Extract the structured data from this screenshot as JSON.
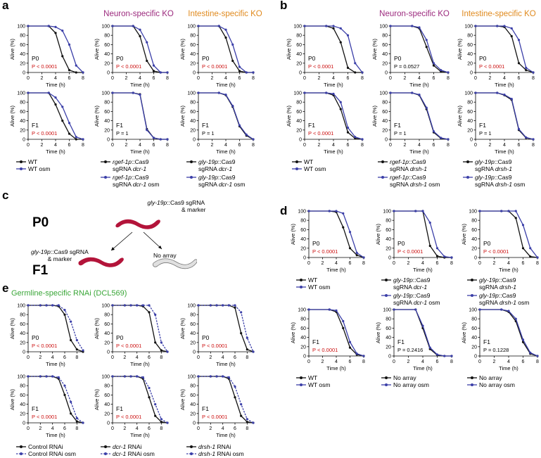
{
  "panel_letters": {
    "a": "a",
    "b": "b",
    "c": "c",
    "d": "d",
    "e": "e"
  },
  "column_titles": {
    "a_neuron": "Neuron-specific KO",
    "a_intestine": "Intestine-specific KO",
    "b_neuron": "Neuron-specific KO",
    "b_intestine": "Intestine-specific KO",
    "e_title": "Germline-specific RNAi (DCL569)"
  },
  "panel_c": {
    "p0": "P0",
    "f1": "F1",
    "top_label_line1_italic": "gly-19p",
    "top_label_line1_rest": "::Cas9 sgRNA",
    "top_label_line2": "& marker",
    "left_label_line1_italic": "gly-19p",
    "left_label_line1_rest": "::Cas9 sgRNA",
    "left_label_line2": "& marker",
    "right_label": "No array"
  },
  "axis_common": {
    "ylabel": "Alive (%)",
    "xlabel": "Time (h)",
    "yticks": [
      "0",
      "20",
      "40",
      "60",
      "80",
      "100"
    ],
    "xticks": [
      "0",
      "2",
      "4",
      "6",
      "8"
    ]
  },
  "colors": {
    "wt": "#111111",
    "osm": "#3b3fa8",
    "pval": "#cc1111"
  },
  "chart_data": [
    {
      "id": "a1",
      "type": "line",
      "gen": "P0",
      "p": "P < 0.0001",
      "sig": true,
      "dashed": false,
      "x": [
        0,
        3,
        4,
        5,
        6,
        7,
        8
      ],
      "series": [
        {
          "values": [
            100,
            100,
            85,
            35,
            5,
            0,
            0
          ]
        },
        {
          "values": [
            100,
            100,
            98,
            90,
            60,
            15,
            0
          ]
        }
      ]
    },
    {
      "id": "a2",
      "type": "line",
      "gen": "P0",
      "p": "P < 0.0001",
      "sig": true,
      "dashed": false,
      "x": [
        0,
        3,
        4,
        5,
        6,
        7,
        8
      ],
      "series": [
        {
          "values": [
            100,
            100,
            78,
            25,
            3,
            0,
            0
          ]
        },
        {
          "values": [
            100,
            100,
            92,
            65,
            15,
            0,
            0
          ]
        }
      ]
    },
    {
      "id": "a3",
      "type": "line",
      "gen": "P0",
      "p": "P < 0.0001",
      "sig": true,
      "dashed": false,
      "x": [
        0,
        3,
        4,
        5,
        6,
        7,
        8
      ],
      "series": [
        {
          "values": [
            100,
            100,
            75,
            25,
            3,
            0,
            0
          ]
        },
        {
          "values": [
            100,
            100,
            92,
            60,
            12,
            0,
            0
          ]
        }
      ]
    },
    {
      "id": "a4",
      "type": "line",
      "gen": "F1",
      "p": "P < 0.0001",
      "sig": true,
      "dashed": false,
      "x": [
        0,
        3,
        4,
        5,
        6,
        7,
        8
      ],
      "series": [
        {
          "values": [
            100,
            100,
            75,
            40,
            12,
            0,
            0
          ]
        },
        {
          "values": [
            100,
            100,
            90,
            70,
            35,
            5,
            0
          ]
        }
      ]
    },
    {
      "id": "a5",
      "type": "line",
      "gen": "F1",
      "p": "P = 1",
      "sig": false,
      "dashed": false,
      "x": [
        0,
        3,
        4,
        5,
        6,
        7,
        8
      ],
      "series": [
        {
          "values": [
            100,
            100,
            97,
            22,
            3,
            0,
            0
          ]
        },
        {
          "values": [
            100,
            100,
            96,
            20,
            3,
            0,
            0
          ]
        }
      ]
    },
    {
      "id": "a6",
      "type": "line",
      "gen": "F1",
      "p": "P = 1",
      "sig": false,
      "dashed": false,
      "x": [
        0,
        3,
        4,
        5,
        6,
        7,
        8
      ],
      "series": [
        {
          "values": [
            100,
            100,
            95,
            70,
            28,
            8,
            0
          ]
        },
        {
          "values": [
            100,
            100,
            96,
            72,
            30,
            10,
            0
          ]
        }
      ]
    },
    {
      "id": "b1",
      "type": "line",
      "gen": "P0",
      "p": "P < 0.0001",
      "sig": true,
      "dashed": false,
      "x": [
        0,
        3,
        4,
        5,
        6,
        7,
        8
      ],
      "series": [
        {
          "values": [
            100,
            100,
            95,
            65,
            10,
            0,
            0
          ]
        },
        {
          "values": [
            100,
            100,
            100,
            95,
            80,
            20,
            0
          ]
        }
      ]
    },
    {
      "id": "b2",
      "type": "line",
      "gen": "P0",
      "p": "P = 0.0527",
      "sig": false,
      "dashed": false,
      "x": [
        0,
        3,
        4,
        5,
        6,
        7,
        8
      ],
      "series": [
        {
          "values": [
            100,
            100,
            95,
            55,
            15,
            2,
            0
          ]
        },
        {
          "values": [
            100,
            100,
            97,
            70,
            20,
            5,
            0
          ]
        }
      ]
    },
    {
      "id": "b3",
      "type": "line",
      "gen": "P0",
      "p": "P < 0.0001",
      "sig": true,
      "dashed": false,
      "x": [
        0,
        3,
        4,
        5,
        6,
        7,
        8
      ],
      "series": [
        {
          "values": [
            100,
            100,
            98,
            78,
            20,
            5,
            0
          ]
        },
        {
          "values": [
            100,
            100,
            100,
            95,
            70,
            10,
            0
          ]
        }
      ]
    },
    {
      "id": "b4",
      "type": "line",
      "gen": "F1",
      "p": "P < 0.0001",
      "sig": true,
      "dashed": false,
      "x": [
        0,
        3,
        4,
        5,
        6,
        7,
        8
      ],
      "series": [
        {
          "values": [
            100,
            100,
            95,
            65,
            15,
            2,
            0
          ]
        },
        {
          "values": [
            100,
            100,
            98,
            80,
            25,
            5,
            0
          ]
        }
      ]
    },
    {
      "id": "b5",
      "type": "line",
      "gen": "F1",
      "p": "P = 1",
      "sig": false,
      "dashed": false,
      "x": [
        0,
        3,
        4,
        5,
        6,
        7,
        8
      ],
      "series": [
        {
          "values": [
            100,
            100,
            95,
            65,
            15,
            2,
            0
          ]
        },
        {
          "values": [
            100,
            100,
            96,
            68,
            17,
            3,
            0
          ]
        }
      ]
    },
    {
      "id": "b6",
      "type": "line",
      "gen": "F1",
      "p": "P = 1",
      "sig": false,
      "dashed": false,
      "x": [
        0,
        3,
        4,
        5,
        6,
        7,
        8
      ],
      "series": [
        {
          "values": [
            100,
            100,
            95,
            85,
            20,
            3,
            0
          ]
        },
        {
          "values": [
            100,
            100,
            96,
            87,
            22,
            4,
            0
          ]
        }
      ]
    },
    {
      "id": "d1",
      "type": "line",
      "gen": "P0",
      "p": "P < 0.0001",
      "sig": true,
      "dashed": false,
      "x": [
        0,
        3,
        4,
        5,
        6,
        7,
        8
      ],
      "series": [
        {
          "values": [
            100,
            100,
            98,
            65,
            20,
            5,
            0
          ]
        },
        {
          "values": [
            100,
            100,
            100,
            95,
            55,
            10,
            0
          ]
        }
      ]
    },
    {
      "id": "d2",
      "type": "line",
      "gen": "P0",
      "p": "P < 0.0001",
      "sig": true,
      "dashed": false,
      "x": [
        0,
        3,
        4,
        5,
        6,
        7,
        8
      ],
      "series": [
        {
          "values": [
            100,
            100,
            100,
            25,
            3,
            0,
            0
          ]
        },
        {
          "values": [
            100,
            100,
            100,
            75,
            20,
            2,
            0
          ]
        }
      ]
    },
    {
      "id": "d3",
      "type": "line",
      "gen": "P0",
      "p": "P < 0.0001",
      "sig": true,
      "dashed": false,
      "x": [
        0,
        3,
        4,
        5,
        6,
        7,
        8
      ],
      "series": [
        {
          "values": [
            100,
            100,
            100,
            85,
            20,
            2,
            0
          ]
        },
        {
          "values": [
            100,
            100,
            100,
            100,
            70,
            20,
            0
          ]
        }
      ]
    },
    {
      "id": "d4",
      "type": "line",
      "gen": "F1",
      "p": "P < 0.0001",
      "sig": true,
      "dashed": false,
      "x": [
        0,
        3,
        4,
        5,
        6,
        7,
        8
      ],
      "series": [
        {
          "values": [
            100,
            100,
            95,
            60,
            18,
            3,
            0
          ]
        },
        {
          "values": [
            100,
            100,
            98,
            75,
            30,
            5,
            0
          ]
        }
      ]
    },
    {
      "id": "d5",
      "type": "line",
      "gen": "F1",
      "p": "P = 0.2416",
      "sig": false,
      "dashed": false,
      "x": [
        0,
        3,
        4,
        5,
        6,
        7,
        8
      ],
      "series": [
        {
          "values": [
            100,
            100,
            60,
            15,
            2,
            0,
            0
          ]
        },
        {
          "values": [
            100,
            100,
            65,
            18,
            3,
            0,
            0
          ]
        }
      ]
    },
    {
      "id": "d6",
      "type": "line",
      "gen": "F1",
      "p": "P = 0.1228",
      "sig": false,
      "dashed": false,
      "x": [
        0,
        3,
        4,
        5,
        6,
        7,
        8
      ],
      "series": [
        {
          "values": [
            100,
            100,
            95,
            75,
            30,
            5,
            0
          ]
        },
        {
          "values": [
            100,
            100,
            97,
            80,
            35,
            7,
            0
          ]
        }
      ]
    },
    {
      "id": "e1",
      "type": "line",
      "gen": "P0",
      "p": "P < 0.0001",
      "sig": true,
      "dashed": true,
      "x": [
        0,
        2,
        3,
        4,
        5,
        6,
        7,
        8,
        9
      ],
      "series": [
        {
          "values": [
            100,
            100,
            100,
            100,
            98,
            80,
            25,
            5,
            0
          ]
        },
        {
          "values": [
            100,
            100,
            100,
            100,
            100,
            90,
            65,
            25,
            3
          ]
        }
      ]
    },
    {
      "id": "e2",
      "type": "line",
      "gen": "P0",
      "p": "P < 0.0001",
      "sig": true,
      "dashed": true,
      "x": [
        0,
        2,
        3,
        4,
        5,
        6,
        7,
        8,
        9
      ],
      "series": [
        {
          "values": [
            100,
            100,
            100,
            100,
            98,
            85,
            20,
            3,
            0
          ]
        },
        {
          "values": [
            100,
            100,
            100,
            100,
            100,
            100,
            80,
            20,
            0
          ]
        }
      ]
    },
    {
      "id": "e3",
      "type": "line",
      "gen": "P0",
      "p": "P < 0.0001",
      "sig": true,
      "dashed": true,
      "x": [
        0,
        2,
        3,
        4,
        5,
        6,
        7,
        8,
        9
      ],
      "series": [
        {
          "values": [
            100,
            100,
            100,
            100,
            100,
            95,
            40,
            5,
            0
          ]
        },
        {
          "values": [
            100,
            100,
            100,
            100,
            100,
            100,
            85,
            30,
            0
          ]
        }
      ]
    },
    {
      "id": "e4",
      "type": "line",
      "gen": "F1",
      "p": "P < 0.0001",
      "sig": true,
      "dashed": true,
      "x": [
        0,
        2,
        3,
        4,
        5,
        6,
        7,
        8,
        9
      ],
      "series": [
        {
          "values": [
            100,
            100,
            100,
            100,
            95,
            60,
            20,
            3,
            0
          ]
        },
        {
          "values": [
            100,
            100,
            100,
            100,
            98,
            80,
            45,
            10,
            0
          ]
        }
      ]
    },
    {
      "id": "e5",
      "type": "line",
      "gen": "F1",
      "p": "P < 0.0001",
      "sig": true,
      "dashed": true,
      "x": [
        0,
        2,
        3,
        4,
        5,
        6,
        7,
        8,
        9
      ],
      "series": [
        {
          "values": [
            100,
            100,
            100,
            100,
            95,
            55,
            15,
            2,
            0
          ]
        },
        {
          "values": [
            100,
            100,
            100,
            100,
            98,
            75,
            40,
            8,
            0
          ]
        }
      ]
    },
    {
      "id": "e6",
      "type": "line",
      "gen": "F1",
      "p": "P < 0.0001",
      "sig": true,
      "dashed": true,
      "x": [
        0,
        2,
        3,
        4,
        5,
        6,
        7,
        8,
        9
      ],
      "series": [
        {
          "values": [
            100,
            100,
            100,
            100,
            95,
            55,
            15,
            2,
            0
          ]
        },
        {
          "values": [
            100,
            100,
            100,
            100,
            98,
            78,
            40,
            8,
            0
          ]
        }
      ]
    }
  ],
  "legends": {
    "a1": [
      {
        "text": "WT"
      },
      {
        "text": "WT osm"
      }
    ],
    "a2": [
      {
        "i": "rgef-1p",
        "r": "::Cas9",
        "l2pre": "sgRNA ",
        "l2i": "dcr-1",
        "l2post": ""
      },
      {
        "i": "rgef-1p",
        "r": "::Cas9",
        "l2pre": "sgRNA ",
        "l2i": "dcr-1",
        "l2post": " osm"
      }
    ],
    "a3": [
      {
        "i": "gly-19p",
        "r": "::Cas9",
        "l2pre": "sgRNA ",
        "l2i": "dcr-1",
        "l2post": ""
      },
      {
        "i": "gly-19p",
        "r": "::Cas9",
        "l2pre": "sgRNA ",
        "l2i": "dcr-1",
        "l2post": " osm"
      }
    ],
    "b1": [
      {
        "text": "WT"
      },
      {
        "text": "WT osm"
      }
    ],
    "b2": [
      {
        "i": "rgef-1p",
        "r": "::Cas9",
        "l2pre": "sgRNA ",
        "l2i": "drsh-1",
        "l2post": ""
      },
      {
        "i": "rgef-1p",
        "r": "::Cas9",
        "l2pre": "sgRNA ",
        "l2i": "drsh-1",
        "l2post": " osm"
      }
    ],
    "b3": [
      {
        "i": "gly-19p",
        "r": "::Cas9",
        "l2pre": "sgRNA ",
        "l2i": "drsh-1",
        "l2post": ""
      },
      {
        "i": "gly-19p",
        "r": "::Cas9",
        "l2pre": "sgRNA ",
        "l2i": "drsh-1",
        "l2post": " osm"
      }
    ],
    "d1": [
      {
        "text": "WT"
      },
      {
        "text": "WT osm"
      }
    ],
    "d2": [
      {
        "i": "gly-19p",
        "r": "::Cas9",
        "l2pre": "sgRNA ",
        "l2i": "dcr-1",
        "l2post": ""
      },
      {
        "i": "gly-19p",
        "r": "::Cas9",
        "l2pre": "sgRNA ",
        "l2i": "dcr-1",
        "l2post": " osm"
      }
    ],
    "d3": [
      {
        "i": "gly-19p",
        "r": "::Cas9",
        "l2pre": "sgRNA ",
        "l2i": "drsh-1",
        "l2post": ""
      },
      {
        "i": "gly-19p",
        "r": "::Cas9",
        "l2pre": "sgRNA ",
        "l2i": "drsh-1",
        "l2post": " osm"
      }
    ],
    "d4": [
      {
        "text": "WT"
      },
      {
        "text": "WT osm"
      }
    ],
    "d5": [
      {
        "text": "No array"
      },
      {
        "text": "No array osm"
      }
    ],
    "d6": [
      {
        "text": "No array"
      },
      {
        "text": "No array osm"
      }
    ],
    "e1": [
      {
        "text": "Control RNAi"
      },
      {
        "text": "Control RNAi osm"
      }
    ],
    "e2": [
      {
        "ti": "dcr-1",
        "tr": " RNAi"
      },
      {
        "ti": "dcr-1",
        "tr": " RNAi osm"
      }
    ],
    "e3": [
      {
        "ti": "drsh-1",
        "tr": " RNAi"
      },
      {
        "ti": "drsh-1",
        "tr": " RNAi osm"
      }
    ]
  }
}
